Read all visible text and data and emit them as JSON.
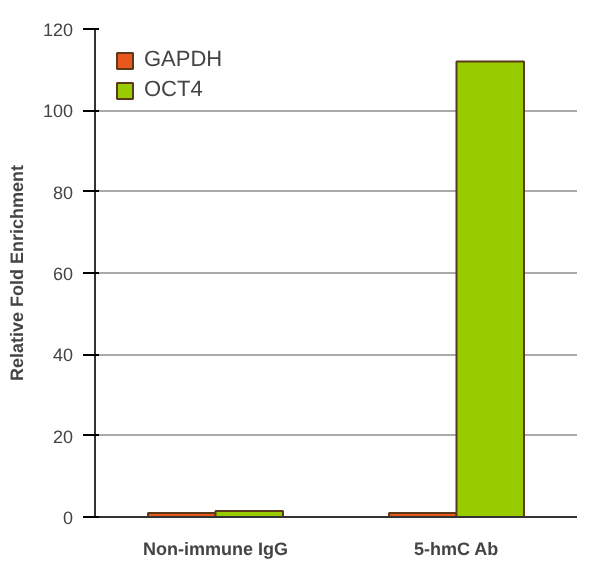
{
  "chart_data": {
    "type": "bar",
    "ylabel": "Relative Fold Enrichment",
    "categories": [
      "Non-immune IgG",
      "5-hmC Ab"
    ],
    "series": [
      {
        "name": "GAPDH",
        "color": "#e8581c",
        "values": [
          1,
          1
        ]
      },
      {
        "name": "OCT4",
        "color": "#99cc00",
        "values": [
          1.5,
          112
        ]
      }
    ],
    "ylim": [
      0,
      120
    ],
    "yticks": [
      0,
      20,
      40,
      60,
      80,
      100,
      120
    ],
    "grid": "y",
    "legend": "top left"
  }
}
